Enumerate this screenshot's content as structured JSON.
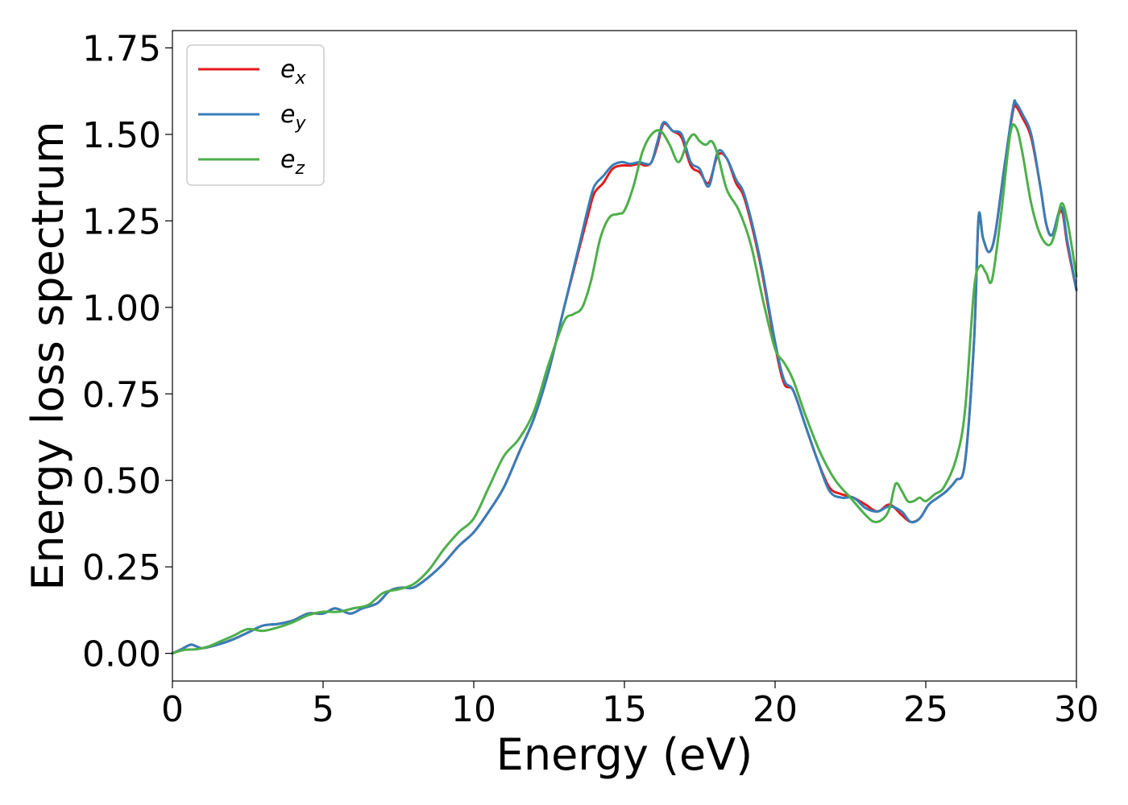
{
  "chart_data": {
    "type": "line",
    "xlabel": "Energy (eV)",
    "ylabel": "Energy loss spectrum",
    "xlim": [
      0,
      30
    ],
    "ylim": [
      -0.08,
      1.8
    ],
    "xticks": [
      0,
      5,
      10,
      15,
      20,
      25,
      30
    ],
    "xtick_labels": [
      "0",
      "5",
      "10",
      "15",
      "20",
      "25",
      "30"
    ],
    "yticks": [
      0,
      0.25,
      0.5,
      0.75,
      1.0,
      1.25,
      1.5,
      1.75
    ],
    "ytick_labels": [
      "0.00",
      "0.25",
      "0.50",
      "0.75",
      "1.00",
      "1.25",
      "1.50",
      "1.75"
    ],
    "grid": false,
    "legend_position": "top-left",
    "series": [
      {
        "name": "e_x",
        "legend_main": "e",
        "legend_sub": "x",
        "color": "#e41a1c",
        "x": [
          0,
          0.3,
          0.6,
          0.8,
          1,
          1.5,
          2,
          2.5,
          3,
          3.5,
          4,
          4.5,
          5,
          5.4,
          5.9,
          6.3,
          6.8,
          7.2,
          7.6,
          8,
          8.5,
          9,
          9.5,
          10,
          10.5,
          11,
          11.5,
          12,
          12.5,
          13,
          13.5,
          13.8,
          14,
          14.3,
          14.6,
          14.9,
          15.2,
          15.5,
          15.7,
          15.9,
          16.1,
          16.3,
          16.6,
          16.9,
          17.2,
          17.5,
          17.8,
          18.1,
          18.4,
          18.7,
          19,
          19.5,
          20,
          20.3,
          20.6,
          21,
          21.4,
          21.8,
          22.2,
          22.6,
          23,
          23.4,
          23.8,
          24.2,
          24.5,
          24.8,
          25.1,
          25.4,
          25.7,
          26,
          26.3,
          26.6,
          26.75,
          26.9,
          27.1,
          27.3,
          27.6,
          27.9,
          28,
          28.2,
          28.5,
          28.8,
          29,
          29.2,
          29.5,
          29.7,
          30
        ],
        "values": [
          0,
          0.012,
          0.025,
          0.02,
          0.015,
          0.025,
          0.04,
          0.06,
          0.08,
          0.085,
          0.095,
          0.115,
          0.115,
          0.13,
          0.115,
          0.13,
          0.145,
          0.18,
          0.19,
          0.19,
          0.22,
          0.26,
          0.31,
          0.35,
          0.41,
          0.48,
          0.58,
          0.68,
          0.82,
          1.0,
          1.17,
          1.27,
          1.33,
          1.36,
          1.4,
          1.41,
          1.41,
          1.415,
          1.41,
          1.42,
          1.47,
          1.53,
          1.51,
          1.49,
          1.41,
          1.39,
          1.36,
          1.44,
          1.43,
          1.36,
          1.31,
          1.13,
          0.89,
          0.78,
          0.76,
          0.66,
          0.56,
          0.48,
          0.46,
          0.45,
          0.43,
          0.41,
          0.43,
          0.4,
          0.38,
          0.39,
          0.43,
          0.45,
          0.47,
          0.5,
          0.55,
          0.9,
          1.25,
          1.2,
          1.16,
          1.21,
          1.4,
          1.57,
          1.58,
          1.55,
          1.49,
          1.35,
          1.24,
          1.21,
          1.28,
          1.18,
          1.05
        ]
      },
      {
        "name": "e_y",
        "legend_main": "e",
        "legend_sub": "y",
        "color": "#377eb8",
        "x": [
          0,
          0.3,
          0.6,
          0.8,
          1,
          1.5,
          2,
          2.5,
          3,
          3.5,
          4,
          4.5,
          5,
          5.4,
          5.9,
          6.3,
          6.8,
          7.2,
          7.6,
          8,
          8.5,
          9,
          9.5,
          10,
          10.5,
          11,
          11.5,
          12,
          12.5,
          13,
          13.5,
          13.8,
          14,
          14.3,
          14.6,
          14.9,
          15.2,
          15.5,
          15.7,
          15.9,
          16.1,
          16.3,
          16.6,
          16.9,
          17.2,
          17.5,
          17.8,
          18.1,
          18.4,
          18.7,
          19,
          19.5,
          20,
          20.3,
          20.6,
          21,
          21.4,
          21.8,
          22.2,
          22.6,
          23,
          23.4,
          23.8,
          24.2,
          24.5,
          24.8,
          25.1,
          25.4,
          25.7,
          26,
          26.3,
          26.6,
          26.75,
          26.9,
          27.1,
          27.3,
          27.6,
          27.9,
          28,
          28.2,
          28.5,
          28.8,
          29,
          29.2,
          29.5,
          29.7,
          30
        ],
        "values": [
          0,
          0.012,
          0.025,
          0.02,
          0.015,
          0.025,
          0.04,
          0.06,
          0.08,
          0.085,
          0.095,
          0.115,
          0.115,
          0.13,
          0.115,
          0.13,
          0.145,
          0.18,
          0.19,
          0.19,
          0.22,
          0.26,
          0.31,
          0.35,
          0.41,
          0.48,
          0.58,
          0.68,
          0.82,
          1.0,
          1.18,
          1.29,
          1.35,
          1.38,
          1.41,
          1.42,
          1.415,
          1.42,
          1.415,
          1.42,
          1.48,
          1.535,
          1.51,
          1.5,
          1.42,
          1.4,
          1.35,
          1.45,
          1.43,
          1.37,
          1.32,
          1.14,
          0.9,
          0.79,
          0.76,
          0.66,
          0.56,
          0.47,
          0.45,
          0.45,
          0.42,
          0.41,
          0.425,
          0.41,
          0.38,
          0.39,
          0.43,
          0.45,
          0.47,
          0.5,
          0.55,
          0.9,
          1.26,
          1.2,
          1.16,
          1.21,
          1.4,
          1.58,
          1.59,
          1.56,
          1.5,
          1.35,
          1.24,
          1.21,
          1.29,
          1.19,
          1.05
        ]
      },
      {
        "name": "e_z",
        "legend_main": "e",
        "legend_sub": "z",
        "color": "#4daf4a",
        "x": [
          0,
          0.4,
          0.8,
          1.2,
          1.6,
          2,
          2.5,
          3,
          3.5,
          4,
          4.5,
          5,
          5.5,
          6,
          6.5,
          7,
          7.5,
          8,
          8.5,
          9,
          9.5,
          10,
          10.5,
          11,
          11.5,
          12,
          12.5,
          13,
          13.3,
          13.6,
          13.9,
          14.2,
          14.5,
          14.8,
          15,
          15.3,
          15.6,
          15.9,
          16.2,
          16.5,
          16.8,
          17.1,
          17.3,
          17.5,
          17.7,
          17.9,
          18.1,
          18.4,
          18.8,
          19.2,
          19.6,
          20,
          20.3,
          20.6,
          21,
          21.5,
          22,
          22.5,
          23,
          23.3,
          23.6,
          23.8,
          24,
          24.2,
          24.4,
          24.6,
          24.8,
          25,
          25.3,
          25.6,
          26,
          26.3,
          26.6,
          26.8,
          27,
          27.2,
          27.5,
          27.8,
          28,
          28.2,
          28.5,
          28.8,
          29.1,
          29.3,
          29.5,
          29.7,
          30
        ],
        "values": [
          0,
          0.01,
          0.012,
          0.02,
          0.035,
          0.05,
          0.07,
          0.065,
          0.075,
          0.09,
          0.11,
          0.12,
          0.12,
          0.13,
          0.14,
          0.175,
          0.185,
          0.2,
          0.24,
          0.3,
          0.35,
          0.39,
          0.48,
          0.57,
          0.62,
          0.7,
          0.84,
          0.96,
          0.98,
          1.0,
          1.08,
          1.2,
          1.26,
          1.27,
          1.28,
          1.35,
          1.45,
          1.5,
          1.51,
          1.47,
          1.42,
          1.48,
          1.5,
          1.48,
          1.47,
          1.48,
          1.44,
          1.34,
          1.28,
          1.18,
          1.02,
          0.88,
          0.84,
          0.79,
          0.69,
          0.58,
          0.5,
          0.45,
          0.4,
          0.38,
          0.39,
          0.42,
          0.49,
          0.47,
          0.44,
          0.44,
          0.45,
          0.44,
          0.46,
          0.48,
          0.56,
          0.7,
          1.05,
          1.12,
          1.1,
          1.08,
          1.27,
          1.5,
          1.52,
          1.45,
          1.3,
          1.21,
          1.18,
          1.22,
          1.3,
          1.25,
          1.09
        ]
      }
    ]
  }
}
